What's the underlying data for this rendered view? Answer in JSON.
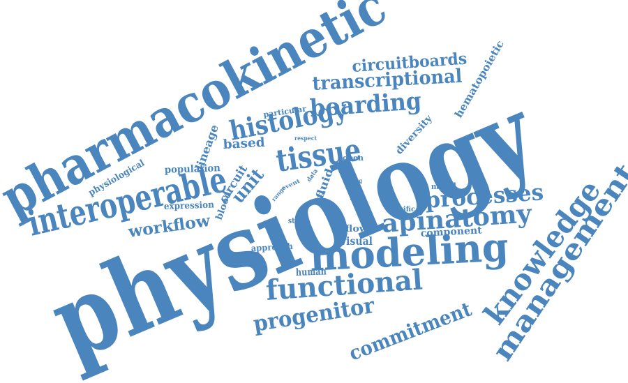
{
  "color": "#4a86bd",
  "words": [
    {
      "id": "physiology",
      "text": "physiology"
    },
    {
      "id": "pharmacokinetic",
      "text": "pharmacokinetic"
    },
    {
      "id": "modeling",
      "text": "modeling"
    },
    {
      "id": "interoperable",
      "text": "interoperable"
    },
    {
      "id": "tissue",
      "text": "tissue"
    },
    {
      "id": "functional",
      "text": "functional"
    },
    {
      "id": "knowledge",
      "text": "knowledge"
    },
    {
      "id": "management",
      "text": "management"
    },
    {
      "id": "apinatomy",
      "text": "apinatomy"
    },
    {
      "id": "histology",
      "text": "histology"
    },
    {
      "id": "boarding",
      "text": "boarding"
    },
    {
      "id": "processes",
      "text": "processes"
    },
    {
      "id": "progenitor",
      "text": "progenitor"
    },
    {
      "id": "commitment",
      "text": "commitment"
    },
    {
      "id": "transcriptional",
      "text": "transcriptional"
    },
    {
      "id": "circuitboards",
      "text": "circuitboards"
    },
    {
      "id": "workflow",
      "text": "workflow"
    },
    {
      "id": "based",
      "text": "based"
    },
    {
      "id": "unit",
      "text": "unit"
    },
    {
      "id": "circuit",
      "text": "circuit"
    },
    {
      "id": "lineage",
      "text": "lineage"
    },
    {
      "id": "population",
      "text": "population"
    },
    {
      "id": "physiological",
      "text": "physiological"
    },
    {
      "id": "expression",
      "text": "expression"
    },
    {
      "id": "blood",
      "text": "blood"
    },
    {
      "id": "fluid",
      "text": "fluid"
    },
    {
      "id": "hematopoietic",
      "text": "hematopoietic"
    },
    {
      "id": "diversity",
      "text": "diversity"
    },
    {
      "id": "particular",
      "text": "particular"
    },
    {
      "id": "respect",
      "text": "respect"
    },
    {
      "id": "open",
      "text": "open"
    },
    {
      "id": "model",
      "text": "model"
    },
    {
      "id": "specific",
      "text": "specific"
    },
    {
      "id": "component",
      "text": "component"
    },
    {
      "id": "flow",
      "text": "flow"
    },
    {
      "id": "visual",
      "text": "visual"
    },
    {
      "id": "stage",
      "text": "stage"
    },
    {
      "id": "approach",
      "text": "approach"
    },
    {
      "id": "human",
      "text": "human"
    },
    {
      "id": "range",
      "text": "range"
    },
    {
      "id": "event",
      "text": "event"
    },
    {
      "id": "data",
      "text": "data"
    },
    {
      "id": "term",
      "text": "term"
    },
    {
      "id": "fating",
      "text": "fating"
    },
    {
      "id": "cell",
      "text": "cell"
    },
    {
      "id": "gene",
      "text": "gene"
    }
  ]
}
